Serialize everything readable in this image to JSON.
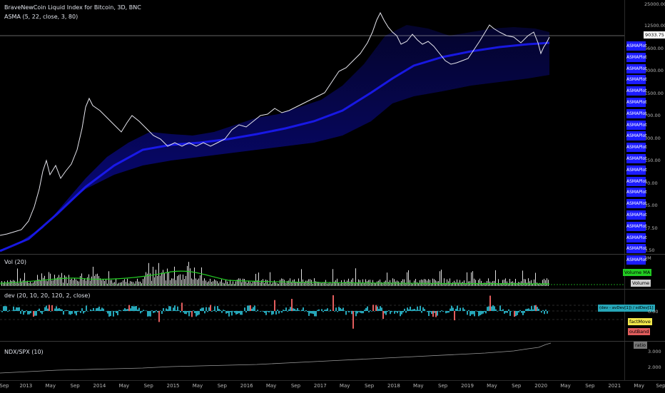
{
  "main": {
    "title": "BraveNewCoin Liquid Index for Bitcoin, 3D, BNC",
    "indicator": "ASMA (5, 22, close, 3, 80)",
    "price_tag": "9033.75",
    "yaxis": [
      "12500.00",
      "6600.00",
      "3000.00",
      "1500.00",
      "700.00",
      "300.00",
      "150.00",
      "70.00",
      "35.00",
      "17.50",
      "8.50"
    ],
    "yaxis_top": "25000.00",
    "asma_label": "ASMAPlot",
    "asma_count": 20
  },
  "vol": {
    "title": "Vol (20)",
    "yaxis_top": "2M",
    "ma_label": "Volume MA",
    "vol_label": "Volume"
  },
  "dev": {
    "title": "dev (20, 10, 20, 120, 2, close)",
    "formula_label": "(dev - avDev[1]) / sdDev[1]",
    "value_label": "0.00",
    "factmove_label": "factMove",
    "outband_label": "outBand"
  },
  "ndx": {
    "title": "NDX/SPX (10)",
    "tag_label": "ratio",
    "yaxis": [
      "3.000",
      "2.000"
    ]
  },
  "xaxis": [
    "Sep",
    "2013",
    "May",
    "Sep",
    "2014",
    "May",
    "Sep",
    "2015",
    "May",
    "Sep",
    "2016",
    "May",
    "Sep",
    "2017",
    "May",
    "Sep",
    "2018",
    "May",
    "Sep",
    "2019",
    "May",
    "Sep",
    "2020",
    "May",
    "Sep",
    "2021",
    "May",
    "Sep"
  ],
  "colors": {
    "asma": "#1c1cff",
    "volume_ma": "#22cc22",
    "pos": "#26a6b8",
    "neg": "#e25d5d",
    "factmove": "#f2e84b",
    "outband": "#e25d5d"
  }
}
